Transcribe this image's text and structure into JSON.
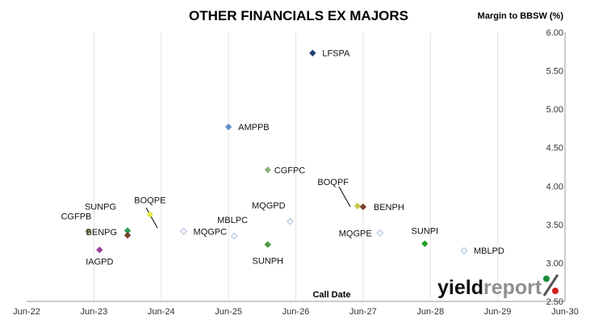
{
  "chart_data": {
    "type": "scatter",
    "title": "OTHER FINANCIALS EX MAJORS",
    "ylabel": "Margin to BBSW (%)",
    "xlabel": "Call Date",
    "x_ticks": [
      "Jun-22",
      "Jun-23",
      "Jun-24",
      "Jun-25",
      "Jun-26",
      "Jun-27",
      "Jun-28",
      "Jun-29",
      "Jun-30"
    ],
    "y_ticks": [
      "2.50",
      "3.00",
      "3.50",
      "4.00",
      "4.50",
      "5.00",
      "5.50",
      "6.00"
    ],
    "ylim": [
      2.5,
      6.0
    ],
    "y_axis_position": "right",
    "grid": "vertical",
    "legend": "none",
    "points": [
      {
        "label": "LFSPA",
        "x": "2026-10",
        "y": 5.73,
        "color": "#1f3f6e",
        "filled": true
      },
      {
        "label": "AMPPB",
        "x": "2025-07",
        "y": 4.77,
        "color": "#5b8fc7",
        "filled": true
      },
      {
        "label": "CGFPC",
        "x": "2026-02",
        "y": 4.21,
        "color": "#8fb37a",
        "filled": true
      },
      {
        "label": "BOQPF",
        "x": "2027-06",
        "y": 3.74,
        "color": "#c8c84a",
        "filled": true
      },
      {
        "label": "BENPH",
        "x": "2027-07",
        "y": 3.73,
        "color": "#7a3f2a",
        "filled": true
      },
      {
        "label": "MQGPD",
        "x": "2026-06",
        "y": 3.54,
        "color": "#b9c9e4",
        "filled": false
      },
      {
        "label": "BOQPE",
        "x": "2024-05",
        "y": 3.63,
        "color": "#e8e84a",
        "filled": true
      },
      {
        "label": "SUNPG",
        "x": "2024-01",
        "y": 3.42,
        "color": "#2a9a5a",
        "filled": true
      },
      {
        "label": "BENPG",
        "x": "2024-01",
        "y": 3.36,
        "color": "#7a3f2a",
        "filled": true
      },
      {
        "label": "MQGPC",
        "x": "2024-11",
        "y": 3.41,
        "color": "#b9c9e4",
        "filled": false
      },
      {
        "label": "MBLPC",
        "x": "2025-08",
        "y": 3.35,
        "color": "#b9c9e4",
        "filled": false
      },
      {
        "label": "SUNPH",
        "x": "2026-02",
        "y": 3.24,
        "color": "#4a9a3a",
        "filled": true
      },
      {
        "label": "MQGPE",
        "x": "2027-10",
        "y": 3.39,
        "color": "#b9c9e4",
        "filled": false
      },
      {
        "label": "SUNPI",
        "x": "2028-06",
        "y": 3.25,
        "color": "#22a022",
        "filled": true
      },
      {
        "label": "MBLPD",
        "x": "2029-01",
        "y": 3.16,
        "color": "#b9c9e4",
        "filled": false
      },
      {
        "label": "CGFPB",
        "x": "2023-06",
        "y": 3.41,
        "color": "#8fb37a",
        "filled": true
      },
      {
        "label": "IAGPD",
        "x": "2023-08",
        "y": 3.17,
        "color": "#9a3fa0",
        "filled": true
      }
    ]
  },
  "logo": {
    "part1": "yield",
    "part2": "report",
    "part3": "%"
  }
}
